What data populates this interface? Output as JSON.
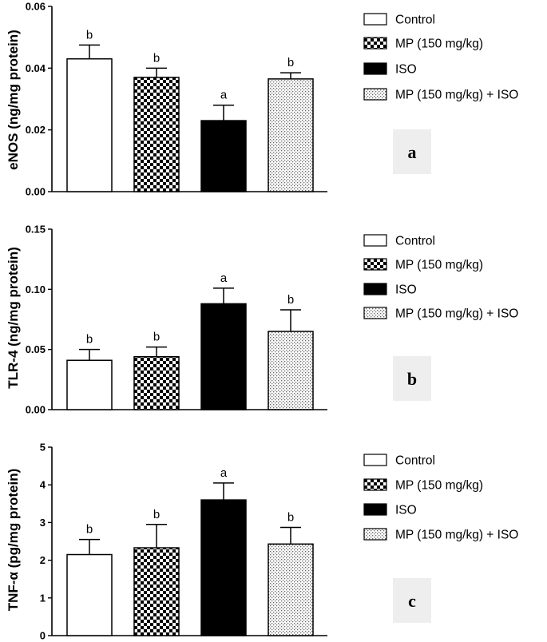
{
  "legend": [
    "Control",
    "MP (150 mg/kg)",
    "ISO",
    "MP (150 mg/kg) + ISO"
  ],
  "chart_data": [
    {
      "type": "bar",
      "panel": "a",
      "ylabel": "eNOS (ng/mg protein)",
      "categories": [
        "Control",
        "MP (150 mg/kg)",
        "ISO",
        "MP (150 mg/kg) + ISO"
      ],
      "values": [
        0.043,
        0.037,
        0.023,
        0.0365
      ],
      "errors": [
        0.0045,
        0.003,
        0.005,
        0.002
      ],
      "significance": [
        "b",
        "b",
        "a",
        "b"
      ],
      "ylim": [
        0,
        0.06
      ],
      "yticks": [
        "0.00",
        "0.02",
        "0.04",
        "0.06"
      ]
    },
    {
      "type": "bar",
      "panel": "b",
      "ylabel": "TLR-4 (ng/mg protein)",
      "categories": [
        "Control",
        "MP (150 mg/kg)",
        "ISO",
        "MP (150 mg/kg) + ISO"
      ],
      "values": [
        0.041,
        0.044,
        0.088,
        0.065
      ],
      "errors": [
        0.009,
        0.008,
        0.013,
        0.018
      ],
      "significance": [
        "b",
        "b",
        "a",
        "b"
      ],
      "ylim": [
        0,
        0.15
      ],
      "yticks": [
        "0.00",
        "0.05",
        "0.10",
        "0.15"
      ]
    },
    {
      "type": "bar",
      "panel": "c",
      "ylabel": "TNF-α (pg/mg protein)",
      "categories": [
        "Control",
        "MP (150 mg/kg)",
        "ISO",
        "MP (150 mg/kg) + ISO"
      ],
      "values": [
        2.15,
        2.33,
        3.6,
        2.43
      ],
      "errors": [
        0.4,
        0.62,
        0.45,
        0.44
      ],
      "significance": [
        "b",
        "b",
        "a",
        "b"
      ],
      "ylim": [
        0,
        5
      ],
      "yticks": [
        "0",
        "1",
        "2",
        "3",
        "4",
        "5"
      ]
    }
  ]
}
